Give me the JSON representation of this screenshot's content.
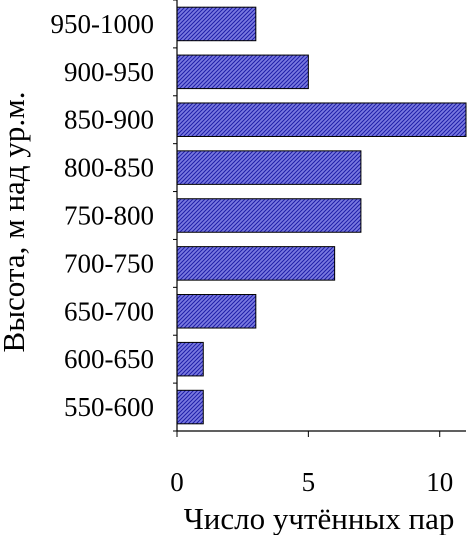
{
  "chart_data": {
    "type": "bar",
    "orientation": "horizontal",
    "categories": [
      "950-1000",
      "900-950",
      "850-900",
      "800-850",
      "750-800",
      "700-750",
      "650-700",
      "600-650",
      "550-600"
    ],
    "values": [
      3,
      5,
      11,
      7,
      7,
      6,
      3,
      1,
      1
    ],
    "xlabel": "Число учтённых пар",
    "ylabel": "Высота, м над ур.м.",
    "xlim": [
      0,
      11
    ],
    "xticks": [
      0,
      5,
      10
    ],
    "xtick_labels": [
      "0",
      "5",
      "10"
    ],
    "grid": false,
    "legend": "none",
    "colors": {
      "bar_fill": "#7a7ae0",
      "bar_hatch": "#1e1ea8",
      "bar_stroke": "#000000",
      "axis": "#000000"
    }
  }
}
